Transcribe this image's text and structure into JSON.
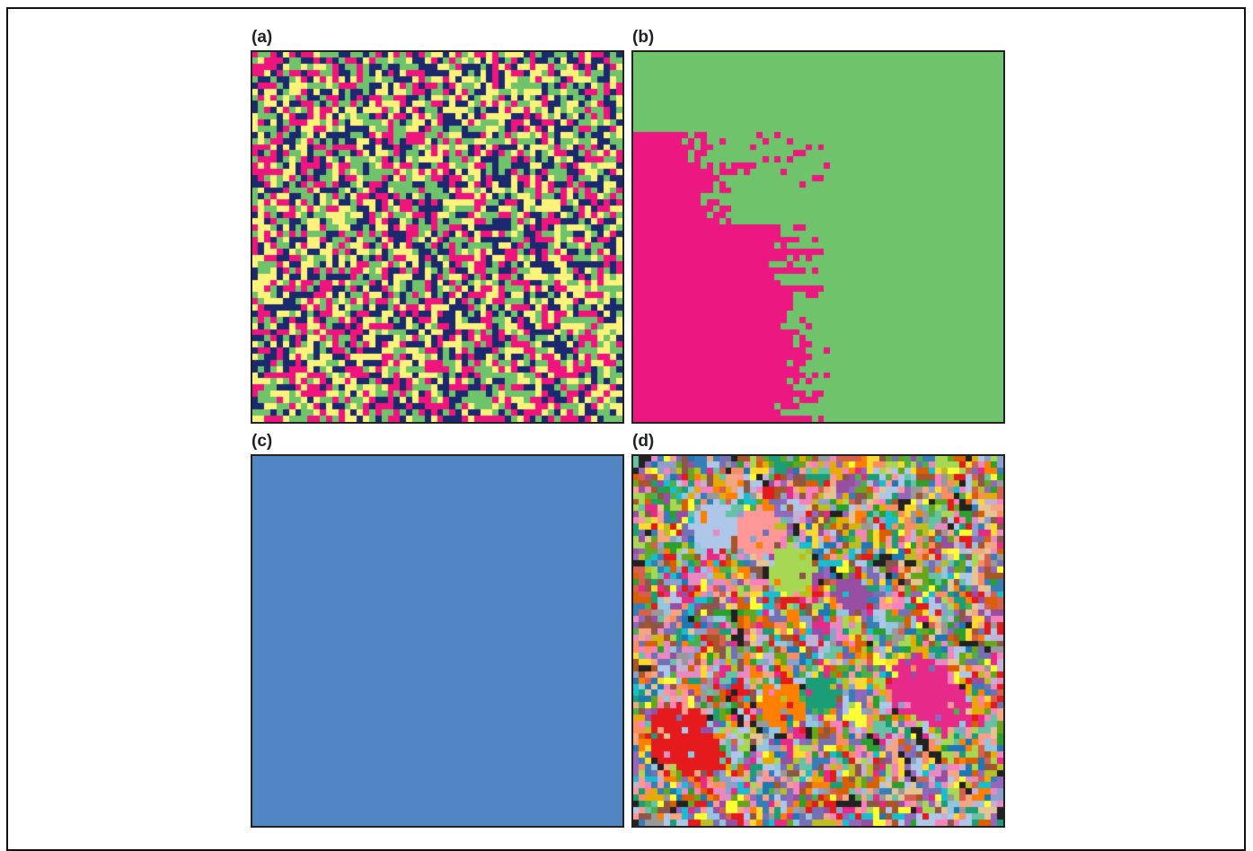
{
  "panels": [
    {
      "label": "(a)",
      "pattern": "random-mix",
      "colors": [
        "#f0157e",
        "#6fc46b",
        "#1b2a6e",
        "#fdf27a"
      ]
    },
    {
      "label": "(b)",
      "pattern": "two-region",
      "colors": [
        "#6fc46b",
        "#ec1780"
      ]
    },
    {
      "label": "(c)",
      "pattern": "uniform",
      "colors": [
        "#5186c5"
      ]
    },
    {
      "label": "(d)",
      "pattern": "many-clusters",
      "colors": [
        "#e41a1c",
        "#377eb8",
        "#4daf4a",
        "#984ea3",
        "#ff7f00",
        "#ffff33",
        "#a65628",
        "#f781bf",
        "#999999",
        "#66c2a5",
        "#fc8d62",
        "#8da0cb",
        "#e78ac3",
        "#a6d854",
        "#ffd92f",
        "#e5c494",
        "#1b9e77",
        "#d95f02",
        "#7570b3",
        "#e7298a",
        "#66a61e",
        "#e6ab02",
        "#17becf",
        "#bcbd22",
        "#8c564b",
        "#2ca02c",
        "#9467bd",
        "#1f77b4",
        "#ff9896",
        "#c5b0d5",
        "#aec7e8",
        "#222222",
        "#f4a582",
        "#92c5de",
        "#d6604d"
      ]
    }
  ]
}
